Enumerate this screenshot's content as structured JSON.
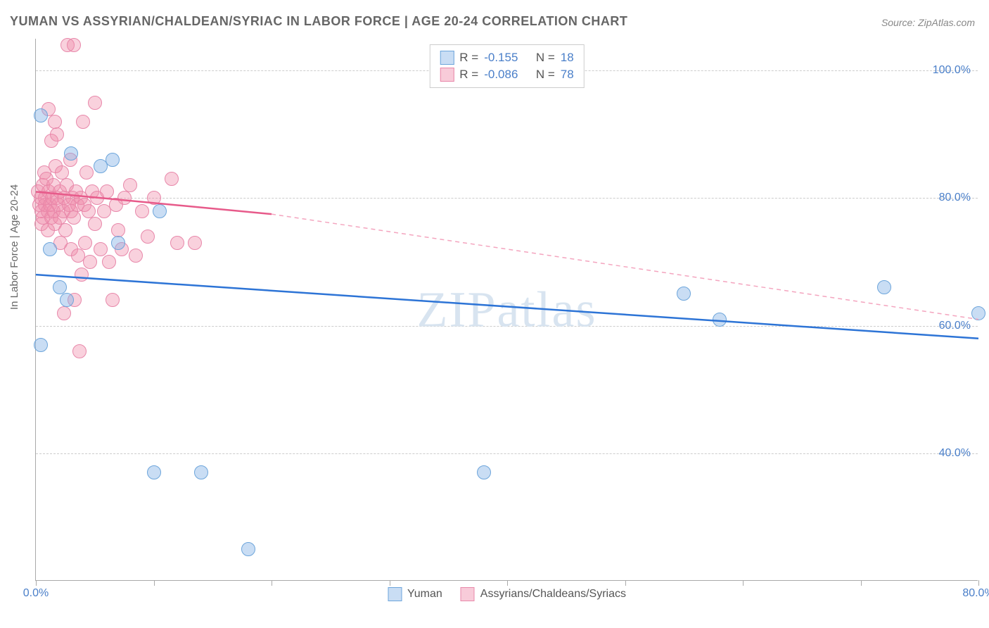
{
  "title": "YUMAN VS ASSYRIAN/CHALDEAN/SYRIAC IN LABOR FORCE | AGE 20-24 CORRELATION CHART",
  "source": "Source: ZipAtlas.com",
  "ylabel": "In Labor Force | Age 20-24",
  "watermark": "ZIPatlas",
  "chart": {
    "type": "scatter",
    "xlim": [
      0,
      80
    ],
    "ylim": [
      20,
      105
    ],
    "yticks": [
      40,
      60,
      80,
      100
    ],
    "ytick_labels": [
      "40.0%",
      "60.0%",
      "80.0%",
      "100.0%"
    ],
    "xticks": [
      0,
      10,
      20,
      30,
      40,
      50,
      60,
      70,
      80
    ],
    "xtick_labels_shown": {
      "0": "0.0%",
      "80": "80.0%"
    },
    "background_color": "#ffffff",
    "grid_color": "#cccccc",
    "grid_dash": true,
    "border_color": "#aaaaaa",
    "watermark_color": "#d8e4f0",
    "marker_radius": 10,
    "marker_opacity": 0.45
  },
  "series": {
    "blue": {
      "label": "Yuman",
      "color_fill": "#87b4e6",
      "color_stroke": "#6da5db",
      "R_label": "R =",
      "R": "-0.155",
      "N_label": "N =",
      "N": "18",
      "trend": {
        "x1": 0,
        "y1": 68,
        "x2": 80,
        "y2": 58,
        "color": "#2d74d6",
        "width": 2.5,
        "dash": false
      },
      "points": [
        [
          0.4,
          93
        ],
        [
          0.4,
          57
        ],
        [
          1.2,
          72
        ],
        [
          2.0,
          66
        ],
        [
          2.6,
          64
        ],
        [
          3.0,
          87
        ],
        [
          5.5,
          85
        ],
        [
          6.5,
          86
        ],
        [
          7.0,
          73
        ],
        [
          10.5,
          78
        ],
        [
          10,
          37
        ],
        [
          14,
          37
        ],
        [
          18,
          25
        ],
        [
          38,
          37
        ],
        [
          55,
          65
        ],
        [
          58,
          61
        ],
        [
          72,
          66
        ],
        [
          80,
          62
        ]
      ]
    },
    "pink": {
      "label": "Assyrians/Chaldeans/Syriacs",
      "color_fill": "#f08caa",
      "color_stroke": "#e888aa",
      "R_label": "R =",
      "R": "-0.086",
      "N_label": "N =",
      "N": "78",
      "trend_solid": {
        "x1": 0,
        "y1": 81,
        "x2": 20,
        "y2": 77.5,
        "color": "#e75a8a",
        "width": 2.5,
        "dash": false
      },
      "trend_dash": {
        "x1": 20,
        "y1": 77.5,
        "x2": 80,
        "y2": 61,
        "color": "#f4a5bf",
        "width": 1.5,
        "dash": true
      },
      "points": [
        [
          0.2,
          81
        ],
        [
          0.3,
          79
        ],
        [
          0.4,
          80
        ],
        [
          0.5,
          78
        ],
        [
          0.5,
          76
        ],
        [
          0.6,
          82
        ],
        [
          0.6,
          77
        ],
        [
          0.7,
          84
        ],
        [
          0.8,
          80
        ],
        [
          0.8,
          79
        ],
        [
          0.9,
          83
        ],
        [
          1.0,
          78
        ],
        [
          1.0,
          75
        ],
        [
          1.1,
          94
        ],
        [
          1.1,
          81
        ],
        [
          1.2,
          79
        ],
        [
          1.3,
          77
        ],
        [
          1.3,
          89
        ],
        [
          1.4,
          80
        ],
        [
          1.5,
          82
        ],
        [
          1.5,
          78
        ],
        [
          1.6,
          92
        ],
        [
          1.6,
          76
        ],
        [
          1.7,
          85
        ],
        [
          1.8,
          80
        ],
        [
          1.8,
          90
        ],
        [
          1.9,
          79
        ],
        [
          2.0,
          77
        ],
        [
          2.0,
          81
        ],
        [
          2.1,
          73
        ],
        [
          2.2,
          84
        ],
        [
          2.3,
          78
        ],
        [
          2.4,
          62
        ],
        [
          2.4,
          80
        ],
        [
          2.5,
          75
        ],
        [
          2.6,
          82
        ],
        [
          2.7,
          104
        ],
        [
          2.8,
          79
        ],
        [
          2.9,
          86
        ],
        [
          3.0,
          78
        ],
        [
          3.0,
          72
        ],
        [
          3.1,
          80
        ],
        [
          3.2,
          104
        ],
        [
          3.2,
          77
        ],
        [
          3.3,
          64
        ],
        [
          3.4,
          81
        ],
        [
          3.5,
          79
        ],
        [
          3.6,
          71
        ],
        [
          3.7,
          56
        ],
        [
          3.8,
          80
        ],
        [
          3.9,
          68
        ],
        [
          4.0,
          92
        ],
        [
          4.1,
          79
        ],
        [
          4.2,
          73
        ],
        [
          4.3,
          84
        ],
        [
          4.5,
          78
        ],
        [
          4.6,
          70
        ],
        [
          4.8,
          81
        ],
        [
          5.0,
          95
        ],
        [
          5.0,
          76
        ],
        [
          5.2,
          80
        ],
        [
          5.5,
          72
        ],
        [
          5.8,
          78
        ],
        [
          6.0,
          81
        ],
        [
          6.2,
          70
        ],
        [
          6.5,
          64
        ],
        [
          6.8,
          79
        ],
        [
          7.0,
          75
        ],
        [
          7.3,
          72
        ],
        [
          7.5,
          80
        ],
        [
          8.0,
          82
        ],
        [
          8.5,
          71
        ],
        [
          9.0,
          78
        ],
        [
          9.5,
          74
        ],
        [
          10.0,
          80
        ],
        [
          11.5,
          83
        ],
        [
          12.0,
          73
        ],
        [
          13.5,
          73
        ]
      ]
    }
  }
}
